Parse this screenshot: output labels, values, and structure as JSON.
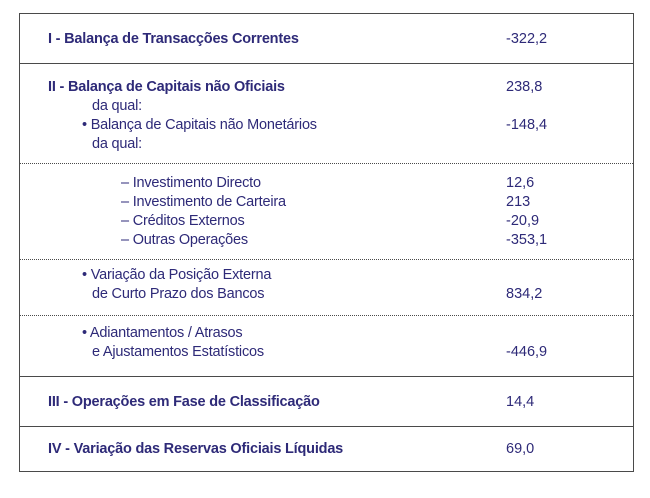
{
  "rows": {
    "i": {
      "label": "I - Balança de Transacções Correntes",
      "value": "-322,2"
    },
    "ii": {
      "label": "II - Balança de Capitais não Oficiais",
      "value": "238,8",
      "sub1": "da qual:",
      "item1_label": "• Balança de Capitais não Monetários",
      "item1_value": "-148,4",
      "sub2": "da qual:"
    },
    "details": [
      {
        "label": "– Investimento Directo",
        "value": "12,6"
      },
      {
        "label": "– Investimento de Carteira",
        "value": "213"
      },
      {
        "label": "– Créditos Externos",
        "value": "-20,9"
      },
      {
        "label": "– Outras Operações",
        "value": "-353,1"
      }
    ],
    "variacao": {
      "line1": "• Variação da Posição Externa",
      "line2": "de Curto Prazo dos Bancos",
      "value": "834,2"
    },
    "adiant": {
      "line1": "• Adiantamentos / Atrasos",
      "line2": "e Ajustamentos Estatísticos",
      "value": "-446,9"
    },
    "iii": {
      "label": "III - Operações em Fase de Classificação",
      "value": "14,4"
    },
    "iv": {
      "label": "IV - Variação das Reservas Oficiais Líquidas",
      "value": "69,0"
    }
  },
  "colors": {
    "text": "#2e2a78",
    "border": "#4a4a4a"
  }
}
